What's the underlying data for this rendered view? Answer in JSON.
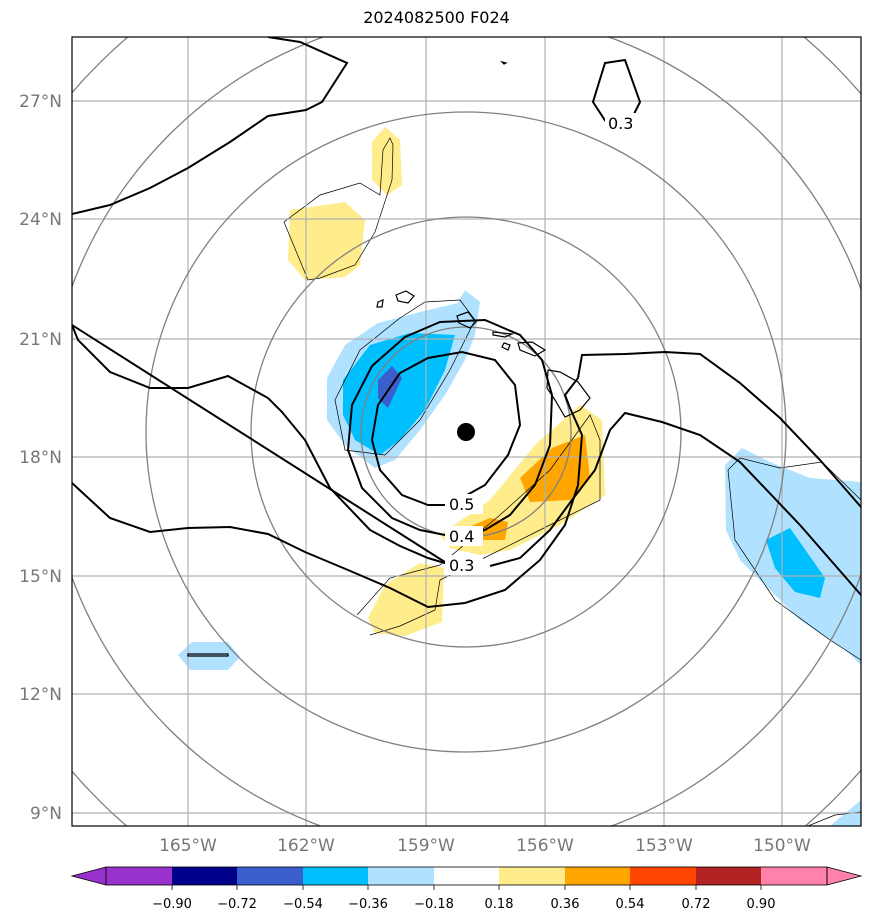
{
  "title": "2024082500 F024",
  "colors": {
    "neg_090": "#9932CC",
    "neg_072": "#00008B",
    "neg_054": "#3A5FCD",
    "neg_036": "#00BFFF",
    "neg_018": "#B0E2FF",
    "zero": "#FFFFFF",
    "pos_018": "#FFEC8B",
    "pos_036": "#FFA500",
    "pos_054": "#FF4500",
    "pos_072": "#B22222",
    "pos_090": "#FF82AB",
    "contour": "#000000",
    "range_ring": "#808080",
    "grid": "#b0b0b0"
  },
  "axes": {
    "lat_labels": [
      "27°N",
      "24°N",
      "21°N",
      "18°N",
      "15°N",
      "12°N",
      "9°N"
    ],
    "lon_labels": [
      "165°W",
      "162°W",
      "159°W",
      "156°W",
      "153°W",
      "150°W"
    ]
  },
  "contour_labels": [
    "0.3",
    "0.5",
    "0.4",
    "0.3"
  ],
  "colorbar": {
    "tick_labels": [
      "−0.90",
      "−0.72",
      "−0.54",
      "−0.36",
      "−0.18",
      "0.18",
      "0.36",
      "0.54",
      "0.72",
      "0.90"
    ]
  },
  "center_marker": "storm-center-icon"
}
